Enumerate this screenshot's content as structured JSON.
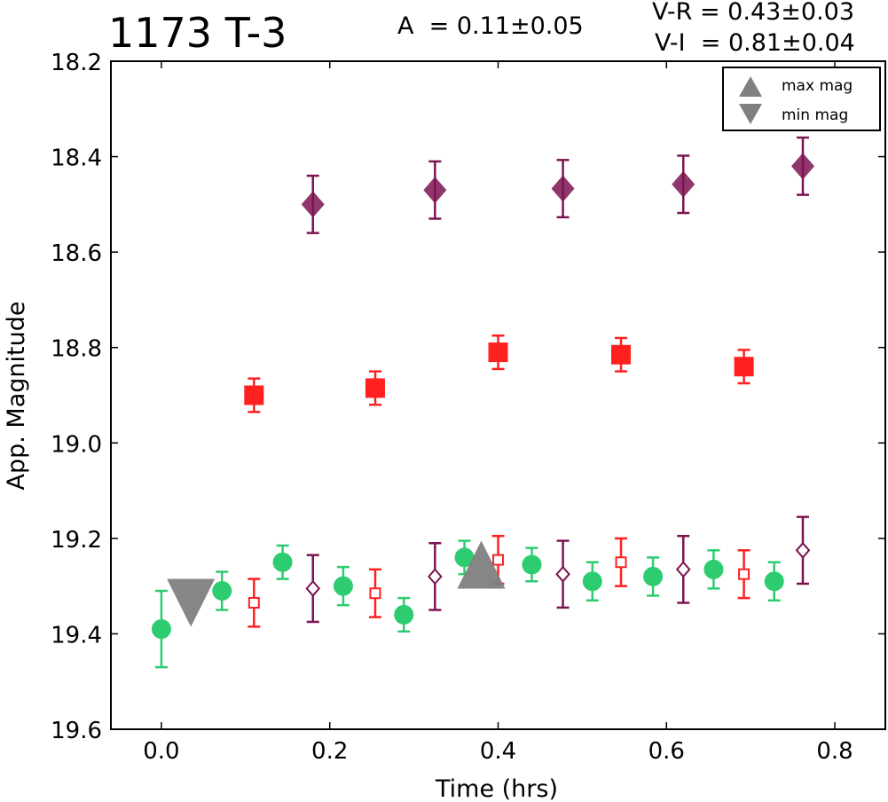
{
  "header": {
    "title": "1173 T-3",
    "amplitude": "A  = 0.11±0.05",
    "color_vr": "V-R = 0.43±0.03",
    "color_vi": "V-I  = 0.81±0.04"
  },
  "chart_data": {
    "type": "scatter",
    "title": "1173 T-3",
    "xlabel": "Time (hrs)",
    "ylabel": "App. Magnitude",
    "xlim": [
      -0.06,
      0.86
    ],
    "ylim": [
      19.6,
      18.2
    ],
    "y_inverted": true,
    "xticks": [
      "0.0",
      "0.2",
      "0.4",
      "0.6",
      "0.8"
    ],
    "yticks": [
      "18.2",
      "18.4",
      "18.6",
      "18.8",
      "19.0",
      "19.2",
      "19.4",
      "19.6"
    ],
    "grid": false,
    "legend": {
      "position": "top-right",
      "entries": [
        {
          "label": "max mag",
          "marker": "triangle-up",
          "color": "#808080"
        },
        {
          "label": "min mag",
          "marker": "triangle-down",
          "color": "#808080"
        }
      ]
    },
    "series": [
      {
        "color": "#2ecc71",
        "marker": "circle-filled",
        "points": [
          {
            "x": 0.0,
            "y": 19.39,
            "err": 0.08
          },
          {
            "x": 0.072,
            "y": 19.31,
            "err": 0.04
          },
          {
            "x": 0.144,
            "y": 19.25,
            "err": 0.035
          },
          {
            "x": 0.216,
            "y": 19.3,
            "err": 0.04
          },
          {
            "x": 0.288,
            "y": 19.36,
            "err": 0.035
          },
          {
            "x": 0.36,
            "y": 19.24,
            "err": 0.035
          },
          {
            "x": 0.44,
            "y": 19.255,
            "err": 0.035
          },
          {
            "x": 0.512,
            "y": 19.29,
            "err": 0.04
          },
          {
            "x": 0.584,
            "y": 19.28,
            "err": 0.04
          },
          {
            "x": 0.656,
            "y": 19.265,
            "err": 0.04
          },
          {
            "x": 0.728,
            "y": 19.29,
            "err": 0.04
          }
        ]
      },
      {
        "color": "#ff2020",
        "marker": "square-open",
        "points": [
          {
            "x": 0.11,
            "y": 19.335,
            "err": 0.05
          },
          {
            "x": 0.254,
            "y": 19.315,
            "err": 0.05
          },
          {
            "x": 0.4,
            "y": 19.245,
            "err": 0.05
          },
          {
            "x": 0.546,
            "y": 19.25,
            "err": 0.05
          },
          {
            "x": 0.692,
            "y": 19.275,
            "err": 0.05
          }
        ]
      },
      {
        "color": "#7b1450",
        "marker": "diamond-open",
        "points": [
          {
            "x": 0.18,
            "y": 19.305,
            "err": 0.07
          },
          {
            "x": 0.325,
            "y": 19.28,
            "err": 0.07
          },
          {
            "x": 0.477,
            "y": 19.275,
            "err": 0.07
          },
          {
            "x": 0.62,
            "y": 19.265,
            "err": 0.07
          },
          {
            "x": 0.762,
            "y": 19.225,
            "err": 0.07
          }
        ]
      },
      {
        "color": "#ff2020",
        "marker": "square-filled",
        "points": [
          {
            "x": 0.11,
            "y": 18.9,
            "err": 0.035
          },
          {
            "x": 0.254,
            "y": 18.885,
            "err": 0.035
          },
          {
            "x": 0.4,
            "y": 18.81,
            "err": 0.035
          },
          {
            "x": 0.546,
            "y": 18.815,
            "err": 0.035
          },
          {
            "x": 0.692,
            "y": 18.84,
            "err": 0.035
          }
        ]
      },
      {
        "color": "#7b1450",
        "marker": "diamond-filled",
        "points": [
          {
            "x": 0.18,
            "y": 18.5,
            "err": 0.06
          },
          {
            "x": 0.325,
            "y": 18.47,
            "err": 0.06
          },
          {
            "x": 0.477,
            "y": 18.467,
            "err": 0.06
          },
          {
            "x": 0.62,
            "y": 18.458,
            "err": 0.06
          },
          {
            "x": 0.762,
            "y": 18.42,
            "err": 0.06
          }
        ]
      }
    ],
    "extrema": [
      {
        "label": "max mag",
        "marker": "triangle-up",
        "x": 0.38,
        "y": 19.255,
        "color": "#808080"
      },
      {
        "label": "min mag",
        "marker": "triangle-down",
        "x": 0.035,
        "y": 19.335,
        "color": "#808080"
      }
    ]
  }
}
